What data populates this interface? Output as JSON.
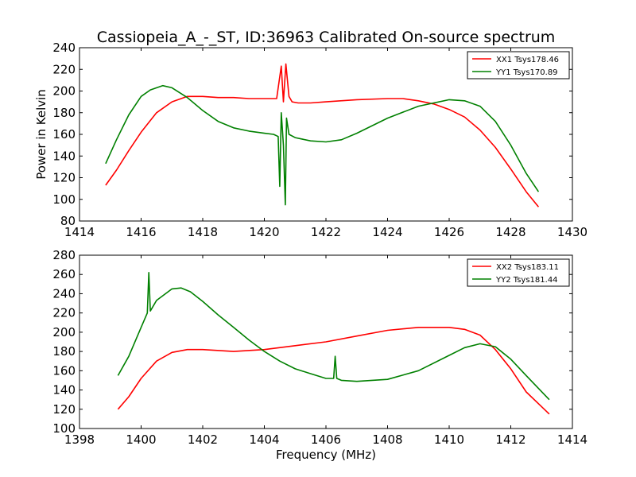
{
  "title": "Cassiopeia_A_-_ST, ID:36963 Calibrated On-source spectrum",
  "ylabel": "Power in Kelvin",
  "xlabel": "Frequency (MHz)",
  "colors": {
    "red": "#ff0000",
    "green": "#008000"
  },
  "chart_data": [
    {
      "type": "line",
      "xlim": [
        1414,
        1430
      ],
      "ylim": [
        80,
        240
      ],
      "xticks": [
        "1414",
        "1416",
        "1418",
        "1420",
        "1422",
        "1424",
        "1426",
        "1428",
        "1430"
      ],
      "yticks": [
        "80",
        "100",
        "120",
        "140",
        "160",
        "180",
        "200",
        "220",
        "240"
      ],
      "legend_position": "upper-right",
      "series": [
        {
          "name": "XX1 Tsys178.46",
          "color": "#ff0000",
          "x": [
            1414.85,
            1415.2,
            1415.6,
            1416.0,
            1416.5,
            1417.0,
            1417.5,
            1418.0,
            1418.5,
            1419.0,
            1419.5,
            1420.0,
            1420.4,
            1420.55,
            1420.62,
            1420.7,
            1420.8,
            1420.9,
            1421.1,
            1421.5,
            1422.0,
            1423.0,
            1424.0,
            1424.5,
            1425.0,
            1425.5,
            1426.0,
            1426.5,
            1427.0,
            1427.5,
            1428.0,
            1428.5,
            1428.9
          ],
          "y": [
            113,
            127,
            145,
            162,
            180,
            190,
            195,
            195,
            194,
            194,
            193,
            193,
            193,
            223,
            190,
            225,
            195,
            190,
            189,
            189,
            190,
            192,
            193,
            193,
            191,
            188,
            183,
            176,
            164,
            148,
            128,
            107,
            93
          ]
        },
        {
          "name": "YY1 Tsys170.89",
          "color": "#008000",
          "x": [
            1414.85,
            1415.2,
            1415.6,
            1416.0,
            1416.3,
            1416.7,
            1417.0,
            1417.5,
            1418.0,
            1418.5,
            1419.0,
            1419.5,
            1420.0,
            1420.3,
            1420.45,
            1420.5,
            1420.55,
            1420.62,
            1420.68,
            1420.72,
            1420.8,
            1421.0,
            1421.5,
            1422.0,
            1422.5,
            1423.0,
            1424.0,
            1425.0,
            1426.0,
            1426.5,
            1427.0,
            1427.5,
            1428.0,
            1428.5,
            1428.9
          ],
          "y": [
            133,
            155,
            178,
            195,
            201,
            205,
            203,
            194,
            182,
            172,
            166,
            163,
            161,
            160,
            158,
            112,
            180,
            150,
            95,
            175,
            160,
            157,
            154,
            153,
            155,
            161,
            175,
            186,
            192,
            191,
            186,
            172,
            150,
            124,
            107
          ]
        }
      ]
    },
    {
      "type": "line",
      "xlim": [
        1398,
        1414
      ],
      "ylim": [
        100,
        280
      ],
      "xticks": [
        "1398",
        "1400",
        "1402",
        "1404",
        "1406",
        "1408",
        "1410",
        "1412",
        "1414"
      ],
      "yticks": [
        "100",
        "120",
        "140",
        "160",
        "180",
        "200",
        "220",
        "240",
        "260",
        "280"
      ],
      "legend_position": "upper-right",
      "series": [
        {
          "name": "XX2 Tsys183.11",
          "color": "#ff0000",
          "x": [
            1399.25,
            1399.6,
            1400.0,
            1400.5,
            1401.0,
            1401.5,
            1402.0,
            1403.0,
            1404.0,
            1405.0,
            1406.0,
            1407.0,
            1408.0,
            1409.0,
            1410.0,
            1410.5,
            1411.0,
            1411.5,
            1412.0,
            1412.5,
            1413.25
          ],
          "y": [
            120,
            133,
            152,
            170,
            179,
            182,
            182,
            180,
            182,
            186,
            190,
            196,
            202,
            205,
            205,
            203,
            197,
            182,
            162,
            138,
            115
          ]
        },
        {
          "name": "YY2 Tsys181.44",
          "color": "#008000",
          "x": [
            1399.25,
            1399.6,
            1400.0,
            1400.2,
            1400.25,
            1400.3,
            1400.5,
            1401.0,
            1401.3,
            1401.6,
            1402.0,
            1402.5,
            1403.0,
            1403.5,
            1404.0,
            1404.5,
            1405.0,
            1405.5,
            1406.0,
            1406.25,
            1406.3,
            1406.35,
            1406.5,
            1407.0,
            1408.0,
            1409.0,
            1410.0,
            1410.5,
            1411.0,
            1411.5,
            1412.0,
            1412.5,
            1413.25
          ],
          "y": [
            155,
            175,
            205,
            220,
            262,
            222,
            233,
            245,
            246,
            242,
            232,
            218,
            205,
            192,
            180,
            170,
            162,
            157,
            152,
            152,
            175,
            152,
            150,
            149,
            151,
            160,
            176,
            184,
            188,
            185,
            172,
            155,
            130
          ]
        }
      ]
    }
  ]
}
